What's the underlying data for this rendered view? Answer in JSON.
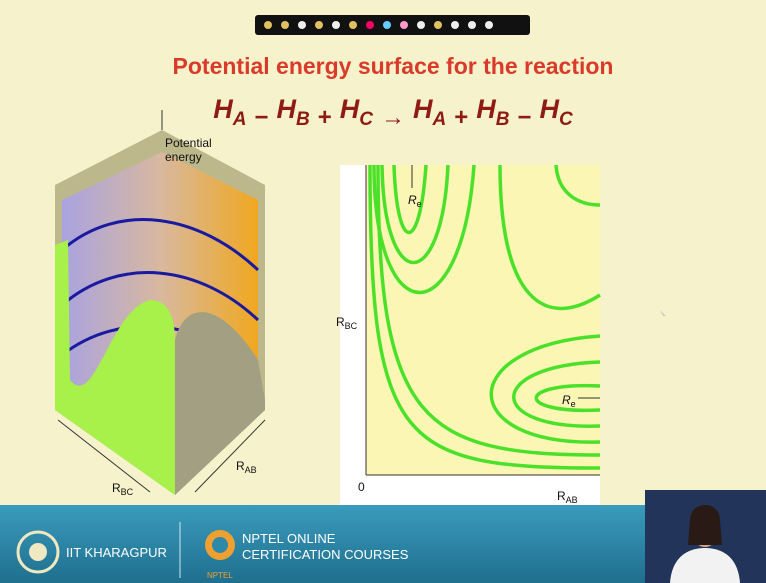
{
  "header": {
    "title": "Potential energy surface for the reaction",
    "equation": {
      "terms": [
        [
          "H",
          "A"
        ],
        [
          "H",
          "B"
        ],
        [
          "H",
          "C"
        ],
        [
          "H",
          "A"
        ],
        [
          "H",
          "B"
        ],
        [
          "H",
          "C"
        ]
      ],
      "operators": [
        "−",
        "+",
        "→",
        "+",
        "−"
      ]
    }
  },
  "surface_figure": {
    "z_label": [
      "Potential",
      "energy"
    ],
    "x_label": [
      "R",
      "BC"
    ],
    "y_label": [
      "R",
      "AB"
    ]
  },
  "contour_figure": {
    "re_labels": [
      [
        "R",
        "e"
      ],
      [
        "R",
        "e"
      ]
    ],
    "y_label": [
      "R",
      "BC"
    ],
    "x_label": [
      "R",
      "AB"
    ],
    "origin": "0"
  },
  "footer": {
    "institute": "IIT KHARAGPUR",
    "program": [
      "NPTEL ONLINE",
      "CERTIFICATION COURSES"
    ],
    "logo_text": "NPTEL"
  }
}
